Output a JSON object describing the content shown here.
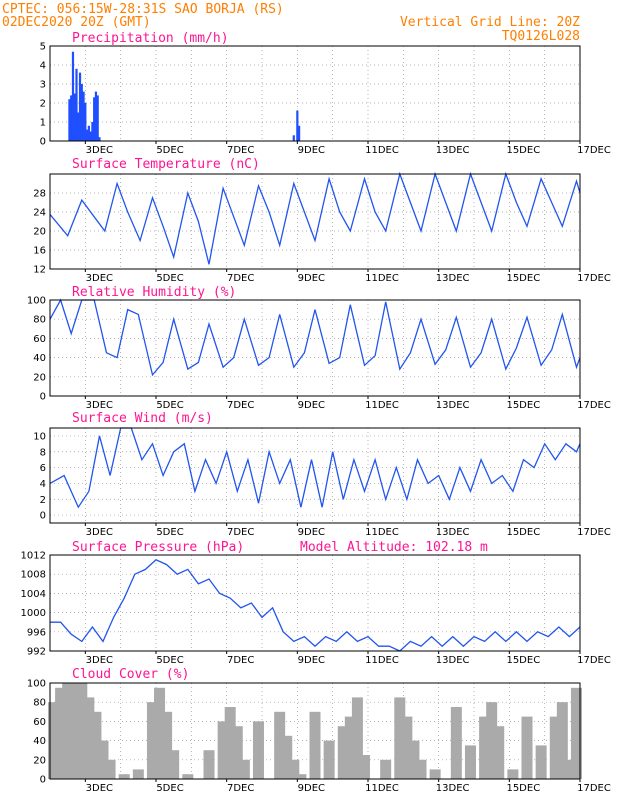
{
  "header": {
    "station": "CPTEC:  056:15W-28:31S  SAO BORJA (RS)",
    "run": "02DEC2020 20Z (GMT)",
    "grid_note": "Vertical Grid Line: 20Z",
    "code": "TQ0126L028"
  },
  "colors": {
    "header": "#ff7f00",
    "title": "#ff1493",
    "line": "#2255ee",
    "bar": "#1f4fff",
    "cloud": "#aaaaaa"
  },
  "x_ticks": [
    "3DEC",
    "5DEC",
    "7DEC",
    "9DEC",
    "11DEC",
    "13DEC",
    "15DEC",
    "17DEC"
  ],
  "chart_data": [
    {
      "type": "bar",
      "title": "Precipitation (mm/h)",
      "ylim": [
        0,
        5
      ],
      "yticks": [
        "0",
        "1",
        "2",
        "3",
        "4",
        "5"
      ],
      "x_unit": "days after 02DEC2020 20Z",
      "x": [
        0.55,
        0.6,
        0.65,
        0.7,
        0.75,
        0.8,
        0.85,
        0.9,
        0.95,
        1.0,
        1.05,
        1.1,
        1.15,
        1.2,
        1.25,
        1.3,
        1.35,
        1.4,
        6.9,
        7.0,
        7.05
      ],
      "values": [
        2.2,
        2.4,
        4.7,
        2.5,
        3.8,
        1.5,
        3.6,
        3.0,
        2.6,
        2.0,
        0.6,
        0.8,
        0.5,
        1.0,
        2.3,
        2.6,
        2.4,
        0.2,
        0.3,
        1.6,
        0.8
      ]
    },
    {
      "type": "line",
      "title": "Surface Temperature (nC)",
      "ylim": [
        12,
        32
      ],
      "yticks": [
        "12",
        "16",
        "20",
        "24",
        "28"
      ],
      "x": [
        0,
        0.5,
        0.9,
        1.25,
        1.55,
        1.9,
        2.2,
        2.55,
        2.9,
        3.2,
        3.5,
        3.9,
        4.2,
        4.5,
        4.9,
        5.2,
        5.5,
        5.9,
        6.2,
        6.5,
        6.9,
        7.2,
        7.5,
        7.9,
        8.2,
        8.5,
        8.9,
        9.2,
        9.5,
        9.9,
        10.2,
        10.5,
        10.9,
        11.2,
        11.5,
        11.9,
        12.2,
        12.5,
        12.9,
        13.2,
        13.5,
        13.9,
        14.2,
        14.5,
        14.9,
        15.0
      ],
      "values": [
        23.5,
        19,
        26.5,
        23,
        20,
        30,
        24,
        18,
        27,
        21,
        14.5,
        28,
        22,
        13,
        29,
        23,
        17,
        29.5,
        24,
        17,
        30,
        24,
        18,
        31,
        24,
        20,
        31,
        24,
        20,
        32,
        26,
        20,
        32,
        26,
        20,
        32,
        26,
        20,
        32,
        26,
        21,
        31,
        26,
        21,
        30.5,
        28
      ]
    },
    {
      "type": "line",
      "title": "Relative Humidity (%)",
      "ylim": [
        0,
        100
      ],
      "yticks": [
        "0",
        "20",
        "40",
        "60",
        "80",
        "100"
      ],
      "x": [
        0,
        0.3,
        0.6,
        0.9,
        1.25,
        1.6,
        1.9,
        2.2,
        2.5,
        2.9,
        3.2,
        3.5,
        3.9,
        4.2,
        4.5,
        4.9,
        5.2,
        5.5,
        5.9,
        6.2,
        6.5,
        6.9,
        7.2,
        7.5,
        7.9,
        8.2,
        8.5,
        8.9,
        9.2,
        9.5,
        9.9,
        10.2,
        10.5,
        10.9,
        11.2,
        11.5,
        11.9,
        12.2,
        12.5,
        12.9,
        13.2,
        13.5,
        13.9,
        14.2,
        14.5,
        14.9,
        15.0
      ],
      "values": [
        80,
        100,
        65,
        100,
        100,
        45,
        40,
        90,
        85,
        22,
        35,
        80,
        28,
        35,
        75,
        30,
        40,
        80,
        32,
        40,
        85,
        30,
        45,
        90,
        34,
        40,
        95,
        32,
        42,
        98,
        28,
        45,
        80,
        33,
        48,
        82,
        30,
        45,
        80,
        28,
        50,
        82,
        32,
        48,
        85,
        30,
        40
      ]
    },
    {
      "type": "line",
      "title": "Surface Wind (m/s)",
      "ylim": [
        -1,
        11
      ],
      "yticks": [
        "0",
        "2",
        "4",
        "6",
        "8",
        "10"
      ],
      "x": [
        0,
        0.4,
        0.8,
        1.1,
        1.4,
        1.7,
        2.0,
        2.3,
        2.6,
        2.9,
        3.2,
        3.5,
        3.8,
        4.1,
        4.4,
        4.7,
        5.0,
        5.3,
        5.6,
        5.9,
        6.2,
        6.5,
        6.8,
        7.1,
        7.4,
        7.7,
        8.0,
        8.3,
        8.6,
        8.9,
        9.2,
        9.5,
        9.8,
        10.1,
        10.4,
        10.7,
        11.0,
        11.3,
        11.6,
        11.9,
        12.2,
        12.5,
        12.8,
        13.1,
        13.4,
        13.7,
        14.0,
        14.3,
        14.6,
        14.9,
        15.0
      ],
      "values": [
        4,
        5,
        1,
        3,
        10,
        5,
        11,
        11,
        7,
        9,
        5,
        8,
        9,
        3,
        7,
        4,
        8,
        3,
        7,
        1.5,
        8,
        4,
        7,
        1,
        7,
        1,
        8,
        2,
        7,
        3,
        7,
        2,
        6,
        2,
        7,
        4,
        5,
        2,
        6,
        3,
        7,
        4,
        5,
        3,
        7,
        6,
        9,
        7,
        9,
        8,
        9
      ]
    },
    {
      "type": "line",
      "title": "Surface Pressure (hPa)",
      "annotation": "Model Altitude: 102.18 m",
      "ylim": [
        992,
        1012
      ],
      "yticks": [
        "992",
        "996",
        "1000",
        "1004",
        "1008",
        "1012"
      ],
      "x": [
        0,
        0.3,
        0.6,
        0.9,
        1.2,
        1.5,
        1.8,
        2.1,
        2.4,
        2.7,
        3.0,
        3.3,
        3.6,
        3.9,
        4.2,
        4.5,
        4.8,
        5.1,
        5.4,
        5.7,
        6.0,
        6.3,
        6.6,
        6.9,
        7.2,
        7.5,
        7.8,
        8.1,
        8.4,
        8.7,
        9.0,
        9.3,
        9.6,
        9.9,
        10.2,
        10.5,
        10.8,
        11.1,
        11.4,
        11.7,
        12.0,
        12.3,
        12.6,
        12.9,
        13.2,
        13.5,
        13.8,
        14.1,
        14.4,
        14.7,
        15.0
      ],
      "values": [
        998,
        998,
        995.5,
        994,
        997,
        994,
        999,
        1003,
        1008,
        1009,
        1011,
        1010,
        1008,
        1009,
        1006,
        1007,
        1004,
        1003,
        1001,
        1002,
        999,
        1001,
        996,
        994,
        995,
        993,
        995,
        994,
        996,
        994,
        995,
        993,
        993,
        992,
        994,
        993,
        995,
        993,
        995,
        993,
        995,
        994,
        996,
        994,
        996,
        994,
        996,
        995,
        997,
        995,
        997
      ]
    },
    {
      "type": "bar",
      "title": "Cloud Cover (%)",
      "ylim": [
        0,
        100
      ],
      "yticks": [
        "0",
        "20",
        "40",
        "60",
        "80",
        "100"
      ],
      "x": [
        0.1,
        0.3,
        0.5,
        0.7,
        0.9,
        1.1,
        1.3,
        1.5,
        1.7,
        2.1,
        2.5,
        2.9,
        3.1,
        3.3,
        3.5,
        3.9,
        4.5,
        4.9,
        5.1,
        5.3,
        5.5,
        5.9,
        6.5,
        6.7,
        6.9,
        7.1,
        7.5,
        7.9,
        8.3,
        8.5,
        8.7,
        8.9,
        9.5,
        9.9,
        10.1,
        10.3,
        10.5,
        10.9,
        11.5,
        11.9,
        12.3,
        12.5,
        12.7,
        13.1,
        13.5,
        13.9,
        14.3,
        14.5,
        14.7,
        14.9
      ],
      "values": [
        80,
        95,
        100,
        100,
        100,
        85,
        70,
        40,
        20,
        5,
        10,
        80,
        95,
        70,
        30,
        5,
        30,
        60,
        75,
        55,
        20,
        60,
        70,
        45,
        20,
        5,
        70,
        40,
        55,
        65,
        85,
        25,
        20,
        85,
        65,
        40,
        20,
        10,
        75,
        35,
        65,
        80,
        55,
        10,
        65,
        35,
        65,
        80,
        20,
        95
      ]
    }
  ]
}
